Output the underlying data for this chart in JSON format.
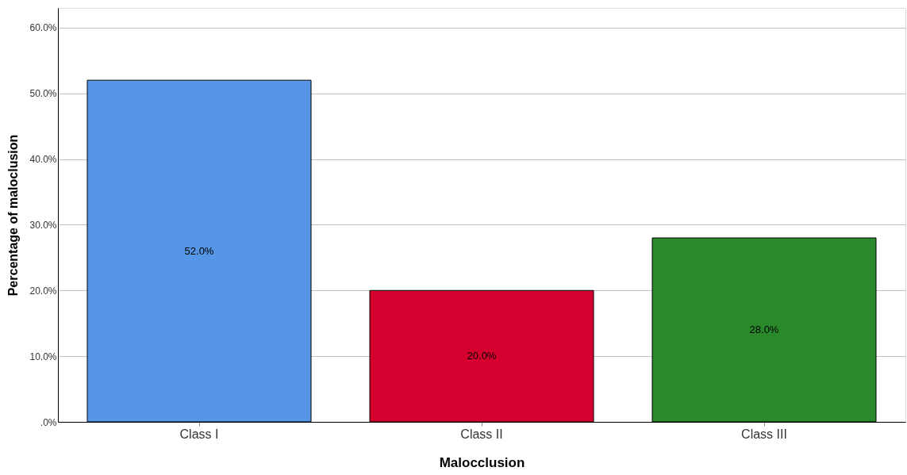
{
  "chart_data": {
    "type": "bar",
    "xlabel": "Malocclusion",
    "ylabel": "Percentage of maloclusion",
    "categories": [
      "Class I",
      "Class II",
      "Class III"
    ],
    "values": [
      52,
      20,
      28
    ],
    "colors": [
      "#5596e6",
      "#d6002f",
      "#2a8a2b"
    ],
    "value_labels": [
      "52.0%",
      "20.0%",
      "28.0%"
    ],
    "ylim": [
      0,
      63
    ],
    "yticks": [
      {
        "value": 0,
        "label": ".0%"
      },
      {
        "value": 10,
        "label": "10.0%"
      },
      {
        "value": 20,
        "label": "20.0%"
      },
      {
        "value": 30,
        "label": "30.0%"
      },
      {
        "value": 40,
        "label": "40.0%"
      },
      {
        "value": 50,
        "label": "50.0%"
      },
      {
        "value": 60,
        "label": "60.0%"
      }
    ],
    "grid": "y"
  }
}
